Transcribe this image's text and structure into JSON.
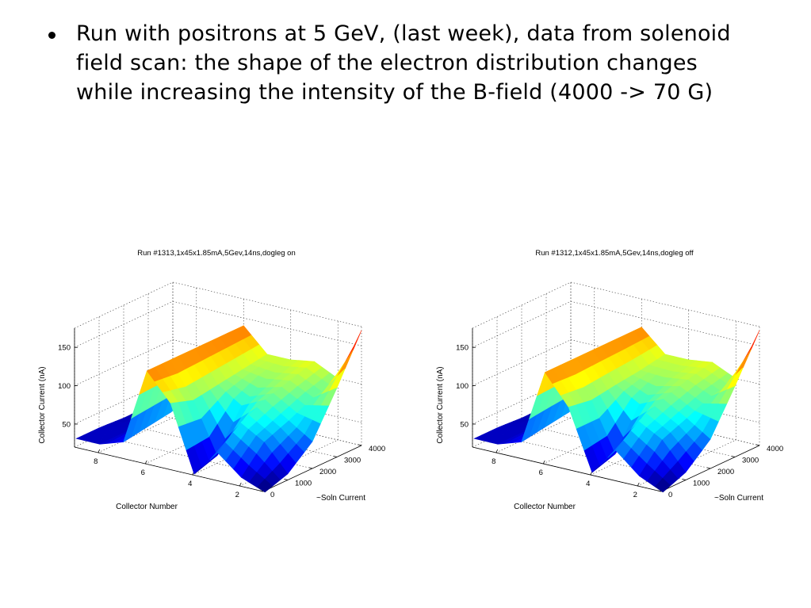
{
  "slide": {
    "bullet_text": "Run with positrons at 5 GeV, (last week), data from solenoid field scan: the shape of the electron distribution changes while increasing the intensity of the B-field (4000 -> 70 G)"
  },
  "chart_data": [
    {
      "type": "surface",
      "title": "Run #1313,1x45x1.85mA,5Gev,14ns,dogleg on",
      "xlabel": "Collector Number",
      "ylabel": "~Soln Current",
      "zlabel": "Collector Current (nA)",
      "xticks": [
        "2",
        "4",
        "6",
        "8"
      ],
      "yticks": [
        "0",
        "1000",
        "2000",
        "3000",
        "4000"
      ],
      "zticks": [
        "50",
        "100",
        "150"
      ],
      "xlim": [
        1,
        9
      ],
      "ylim": [
        0,
        4000
      ],
      "zlim": [
        20,
        175
      ],
      "colormap": "jet",
      "grid": true,
      "collector_numbers": [
        1,
        2,
        3,
        4,
        5,
        6,
        7,
        8,
        9
      ],
      "soln_currents": [
        70,
        1000,
        2000,
        3000,
        4000
      ],
      "collector_current": [
        [
          18,
          30,
          55,
          20,
          105,
          140,
          40,
          30,
          30
        ],
        [
          28,
          62,
          80,
          30,
          95,
          140,
          45,
          30,
          30
        ],
        [
          55,
          75,
          95,
          80,
          100,
          140,
          50,
          30,
          28
        ],
        [
          110,
          90,
          105,
          100,
          105,
          140,
          60,
          32,
          28
        ],
        [
          170,
          100,
          115,
          110,
          110,
          140,
          70,
          35,
          30
        ]
      ]
    },
    {
      "type": "surface",
      "title": "Run #1312,1x45x1.85mA,5Gev,14ns,dogleg off",
      "xlabel": "Collector Number",
      "ylabel": "~Soln Current",
      "zlabel": "Collector Current (nA)",
      "xticks": [
        "2",
        "4",
        "6",
        "8"
      ],
      "yticks": [
        "0",
        "1000",
        "2000",
        "3000",
        "4000"
      ],
      "zticks": [
        "50",
        "100",
        "150"
      ],
      "xlim": [
        1,
        9
      ],
      "ylim": [
        0,
        4000
      ],
      "zlim": [
        20,
        175
      ],
      "colormap": "jet",
      "grid": true,
      "collector_numbers": [
        1,
        2,
        3,
        4,
        5,
        6,
        7,
        8,
        9
      ],
      "soln_currents": [
        70,
        1000,
        2000,
        3000,
        4000
      ],
      "collector_current": [
        [
          18,
          32,
          58,
          22,
          100,
          138,
          40,
          30,
          30
        ],
        [
          30,
          65,
          82,
          32,
          95,
          138,
          45,
          30,
          30
        ],
        [
          58,
          78,
          96,
          82,
          100,
          138,
          50,
          30,
          28
        ],
        [
          112,
          92,
          106,
          102,
          104,
          138,
          60,
          32,
          28
        ],
        [
          170,
          100,
          114,
          110,
          110,
          138,
          70,
          35,
          30
        ]
      ]
    }
  ]
}
